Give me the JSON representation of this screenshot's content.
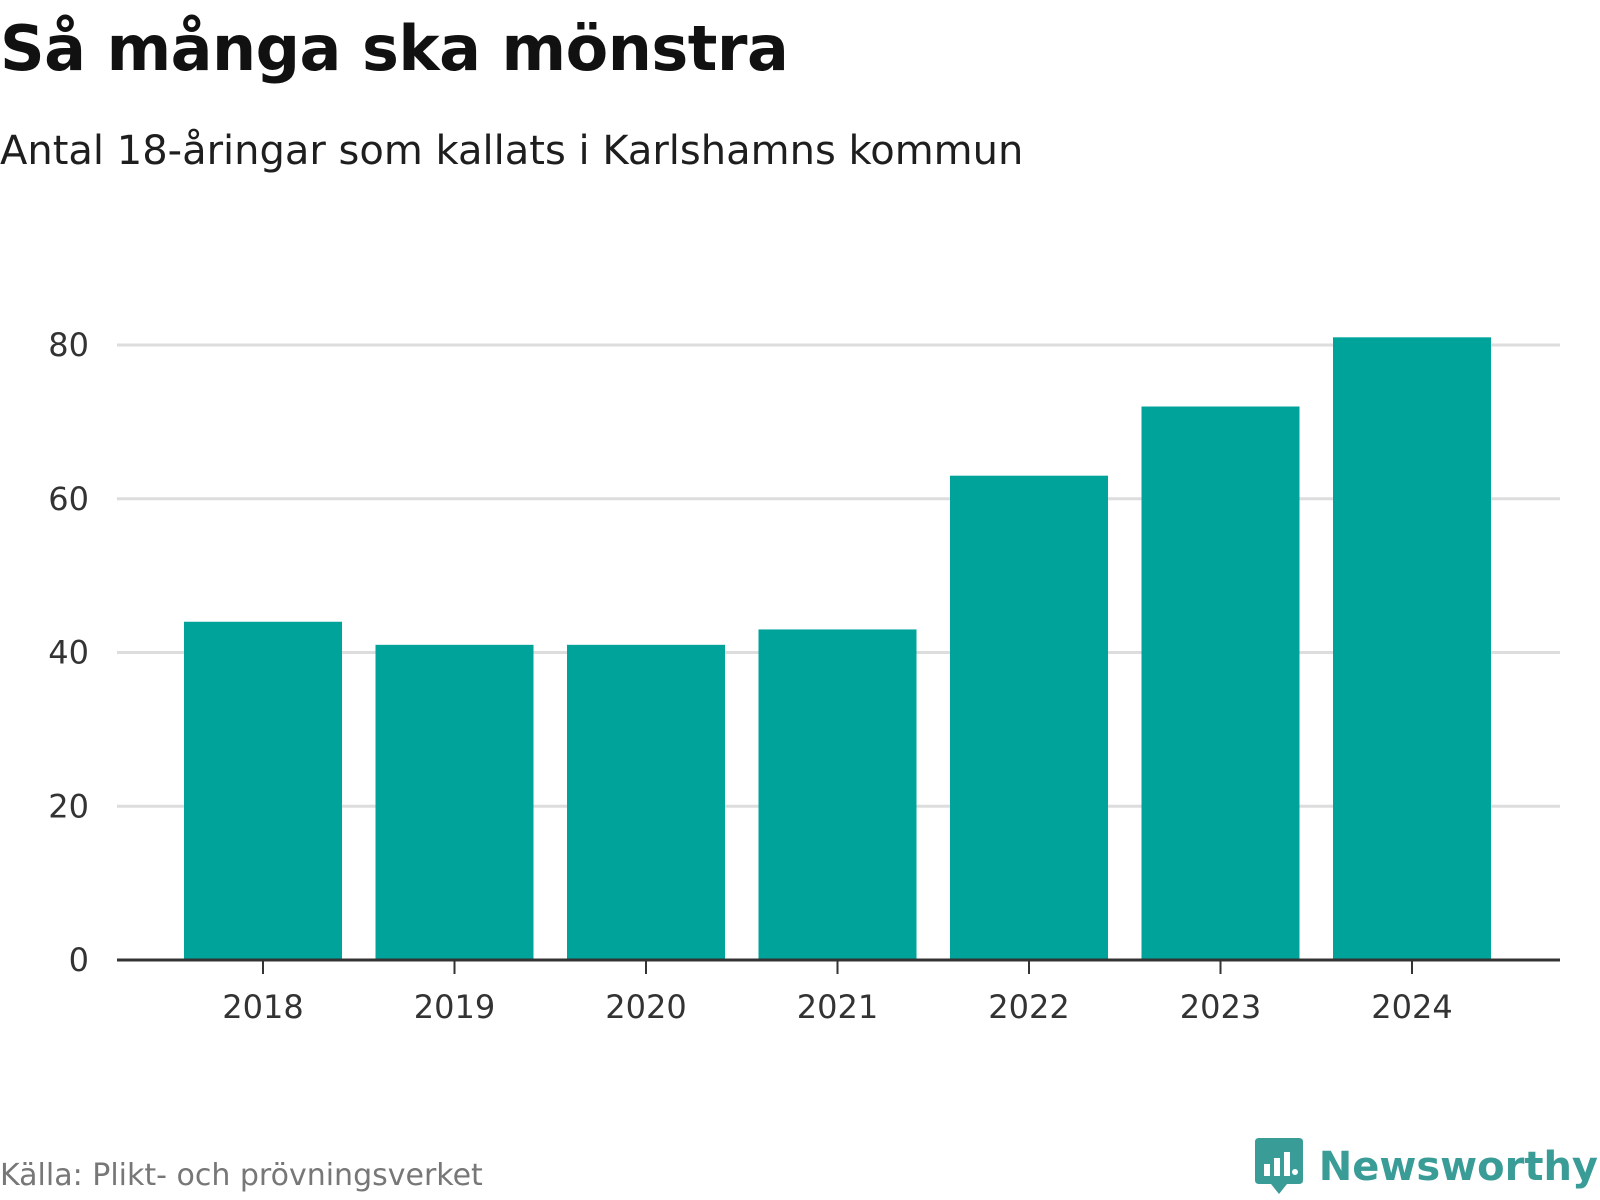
{
  "header": {
    "title": "Så många ska mönstra",
    "subtitle": "Antal 18-åringar som kallats i Karlshamns kommun"
  },
  "footer": {
    "source": "Källa: Plikt- och prövningsverket",
    "brand": "Newsworthy",
    "brand_icon": "newsworthy-logo-icon"
  },
  "colors": {
    "bar": "#00a39a",
    "grid": "#dddddd",
    "axis": "#333333",
    "brand": "#3a9c97"
  },
  "chart_data": {
    "type": "bar",
    "title": "Så många ska mönstra",
    "subtitle": "Antal 18-åringar som kallats i Karlshamns kommun",
    "xlabel": "",
    "ylabel": "",
    "categories": [
      "2018",
      "2019",
      "2020",
      "2021",
      "2022",
      "2023",
      "2024"
    ],
    "values": [
      44,
      41,
      41,
      43,
      63,
      72,
      81
    ],
    "ylim": [
      0,
      80
    ],
    "yticks": [
      0,
      20,
      40,
      60,
      80
    ],
    "grid": true,
    "legend": "none"
  }
}
